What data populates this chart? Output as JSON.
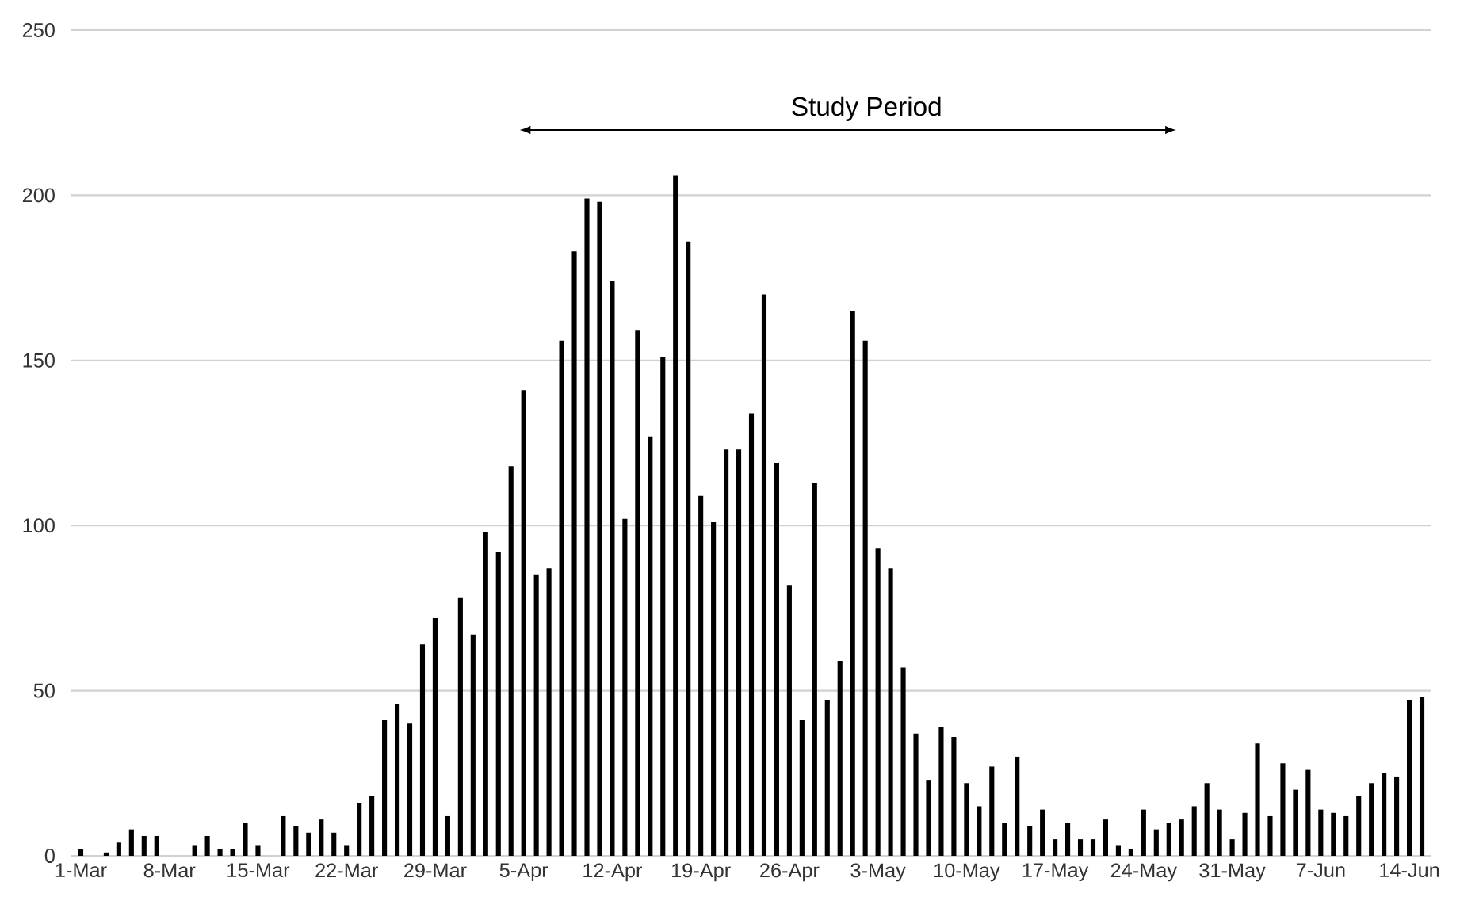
{
  "chart_data": {
    "type": "bar",
    "categories": [
      "1-Mar",
      null,
      null,
      null,
      null,
      null,
      null,
      "8-Mar",
      null,
      null,
      null,
      null,
      null,
      null,
      "15-Mar",
      null,
      null,
      null,
      null,
      null,
      null,
      "22-Mar",
      null,
      null,
      null,
      null,
      null,
      null,
      "29-Mar",
      null,
      null,
      null,
      null,
      null,
      null,
      "5-Apr",
      null,
      null,
      null,
      null,
      null,
      null,
      "12-Apr",
      null,
      null,
      null,
      null,
      null,
      null,
      "19-Apr",
      null,
      null,
      null,
      null,
      null,
      null,
      "26-Apr",
      null,
      null,
      null,
      null,
      null,
      null,
      "3-May",
      null,
      null,
      null,
      null,
      null,
      null,
      "10-May",
      null,
      null,
      null,
      null,
      null,
      null,
      "17-May",
      null,
      null,
      null,
      null,
      null,
      null,
      "24-May",
      null,
      null,
      null,
      null,
      null,
      null,
      "31-May",
      null,
      null,
      null,
      null,
      null,
      null,
      "7-Jun",
      null,
      null,
      null,
      null,
      null,
      null,
      "14-Jun",
      null
    ],
    "values": [
      2,
      0,
      1,
      4,
      8,
      6,
      6,
      0,
      0,
      3,
      6,
      2,
      2,
      10,
      3,
      0,
      12,
      9,
      7,
      11,
      7,
      3,
      16,
      18,
      41,
      46,
      40,
      64,
      72,
      12,
      78,
      67,
      98,
      92,
      118,
      141,
      85,
      87,
      156,
      183,
      199,
      198,
      174,
      102,
      159,
      127,
      151,
      206,
      186,
      109,
      101,
      123,
      123,
      134,
      170,
      119,
      82,
      41,
      113,
      47,
      59,
      165,
      156,
      93,
      87,
      57,
      37,
      23,
      39,
      36,
      22,
      15,
      27,
      10,
      30,
      9,
      14,
      5,
      10,
      5,
      5,
      11,
      3,
      2,
      14,
      8,
      10,
      11,
      15,
      22,
      14,
      5,
      13,
      34,
      12,
      28,
      20,
      26,
      14,
      13,
      12,
      18,
      22,
      25,
      24,
      47,
      48
    ],
    "color": "#000000",
    "ylim": [
      0,
      250
    ],
    "yticks": [
      0,
      50,
      100,
      150,
      200,
      250
    ],
    "grid": "y",
    "annotations": [
      "Study Period"
    ]
  }
}
